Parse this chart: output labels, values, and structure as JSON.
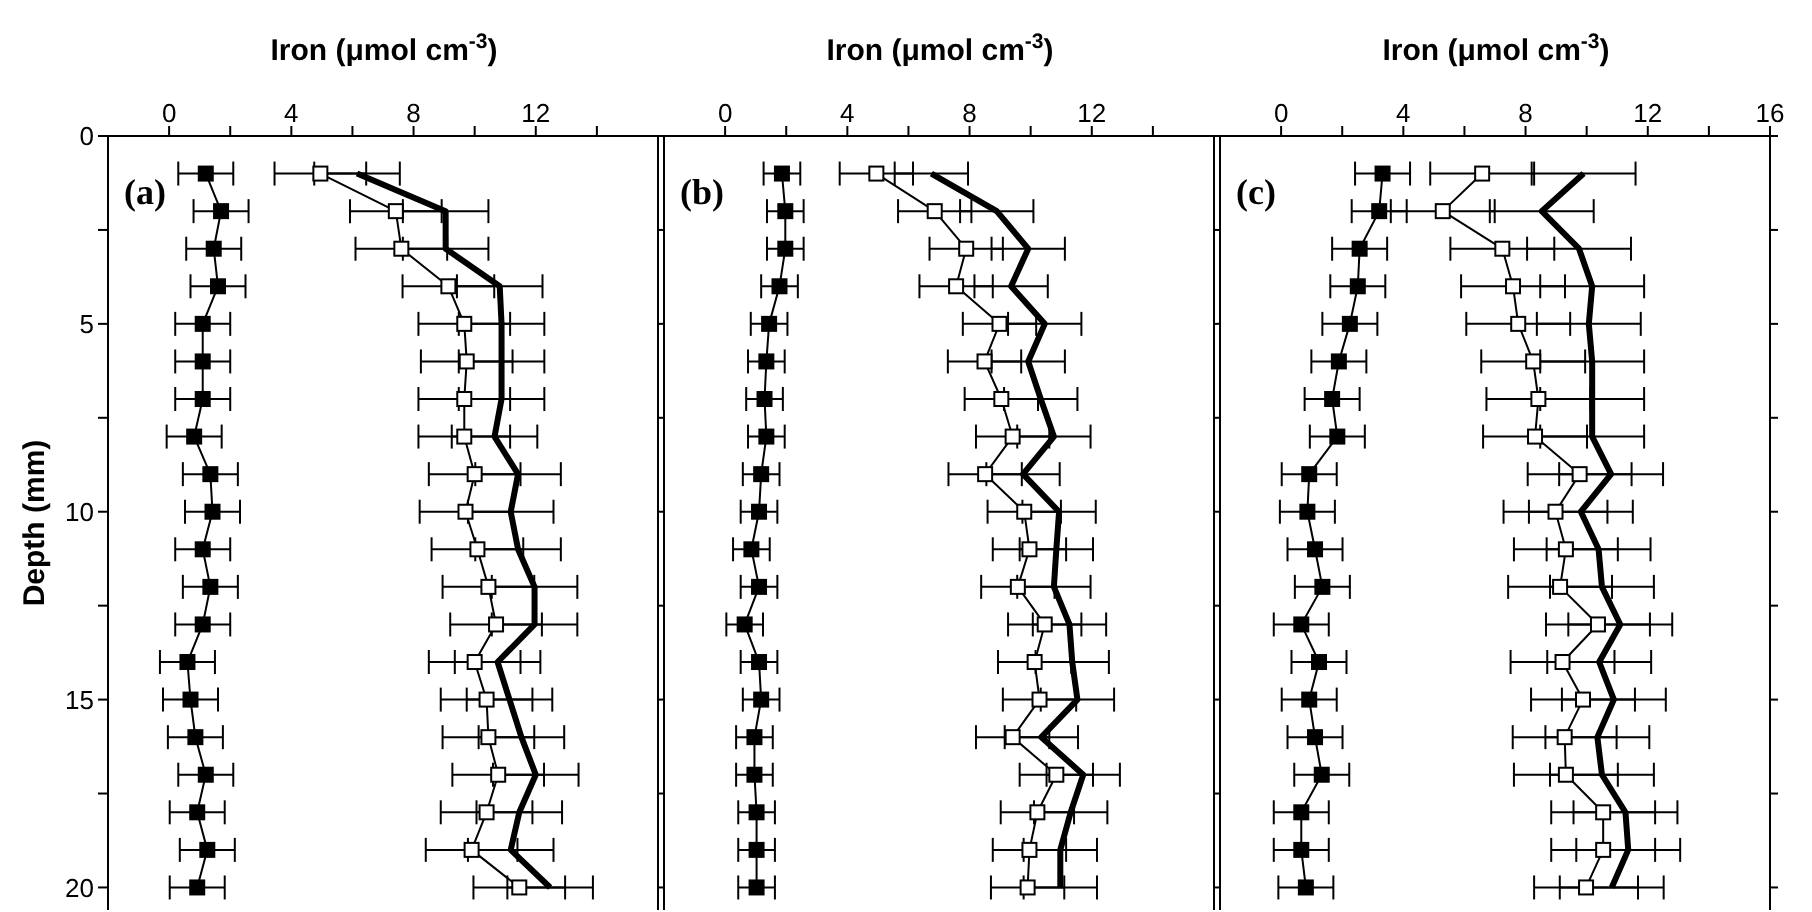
{
  "chart_data": [
    {
      "type": "line",
      "orientation": "horizontal",
      "xlabel": "Iron (μmol cm$^{-3}$)",
      "ylabel": "Depth (mm)",
      "annotations": [
        "(a)"
      ],
      "xlim": [
        -2,
        16
      ],
      "xticks": [
        0,
        {
          "value": 2,
          "label": null
        },
        4,
        {
          "value": 6,
          "label": null
        },
        8,
        {
          "value": 10,
          "label": null
        },
        12,
        {
          "value": 14,
          "label": null
        }
      ],
      "ylim": [
        20.6,
        0
      ],
      "yticks": [
        0,
        {
          "value": 2.5,
          "label": null
        },
        5,
        {
          "value": 7.5,
          "label": null
        },
        10,
        {
          "value": 12.5,
          "label": null
        },
        15,
        {
          "value": 17.5,
          "label": null
        },
        20
      ],
      "x": [
        1,
        2,
        3,
        4,
        5,
        6,
        7,
        8,
        9,
        10,
        11,
        12,
        13,
        14,
        15,
        16,
        17,
        18,
        19,
        20
      ],
      "marker": "square",
      "grid": false,
      "legend": false,
      "series": [
        {
          "color": "#000000",
          "values": [
            1.2,
            1.7,
            1.46,
            1.6,
            1.1,
            1.1,
            1.1,
            0.82,
            1.35,
            1.42,
            1.1,
            1.35,
            1.1,
            0.6,
            0.7,
            0.86,
            1.2,
            0.92,
            1.25,
            0.92
          ],
          "errors": [
            0.9,
            0.9,
            0.9,
            0.9,
            0.9,
            0.9,
            0.9,
            0.9,
            0.9,
            0.9,
            0.9,
            0.9,
            0.9,
            0.9,
            0.9,
            0.9,
            0.9,
            0.9,
            0.9,
            0.9
          ]
        },
        {
          "color": "#000000",
          "values": [
            4.95,
            7.42,
            7.6,
            9.14,
            9.66,
            9.74,
            9.66,
            9.66,
            10.0,
            9.7,
            10.09,
            10.45,
            10.7,
            10.0,
            10.39,
            10.45,
            10.77,
            10.39,
            9.9,
            11.46
          ],
          "errors": [
            1.5,
            1.5,
            1.5,
            1.5,
            1.5,
            1.5,
            1.5,
            1.5,
            1.5,
            1.5,
            1.5,
            1.5,
            1.5,
            1.5,
            1.5,
            1.5,
            1.5,
            1.5,
            1.5,
            1.5
          ]
        },
        {
          "color": "#000000",
          "marker": "none",
          "values": [
            6.15,
            9.05,
            9.05,
            10.82,
            10.88,
            10.88,
            10.88,
            10.65,
            11.42,
            11.18,
            11.42,
            11.96,
            11.96,
            10.75,
            11.14,
            11.53,
            12.0,
            11.46,
            11.18,
            12.47
          ],
          "errors": [
            1.4,
            1.4,
            1.4,
            1.4,
            1.4,
            1.4,
            1.4,
            1.4,
            1.4,
            1.4,
            1.4,
            1.4,
            1.4,
            1.4,
            1.4,
            1.4,
            1.4,
            1.4,
            1.4,
            1.4
          ]
        }
      ]
    },
    {
      "type": "line",
      "orientation": "horizontal",
      "xlabel": "Iron (μmol cm$^{-3}$)",
      "annotations": [
        "(b)"
      ],
      "tick_labels": "x",
      "xlim": [
        -2,
        16
      ],
      "xticks": [
        0,
        {
          "value": 2,
          "label": null
        },
        4,
        {
          "value": 6,
          "label": null
        },
        8,
        {
          "value": 10,
          "label": null
        },
        12,
        {
          "value": 14,
          "label": null
        }
      ],
      "ylim": [
        20.6,
        0
      ],
      "yticks": [
        0,
        {
          "value": 2.5,
          "label": null
        },
        5,
        {
          "value": 7.5,
          "label": null
        },
        10,
        {
          "value": 12.5,
          "label": null
        },
        15,
        {
          "value": 17.5,
          "label": null
        },
        20
      ],
      "x": [
        1,
        2,
        3,
        4,
        5,
        6,
        7,
        8,
        9,
        10,
        11,
        12,
        13,
        14,
        15,
        16,
        17,
        18,
        19,
        20
      ],
      "marker": "square",
      "grid": false,
      "legend": false,
      "series": [
        {
          "color": "#000000",
          "values": [
            1.86,
            1.97,
            1.97,
            1.78,
            1.44,
            1.35,
            1.29,
            1.35,
            1.18,
            1.11,
            0.86,
            1.11,
            0.64,
            1.11,
            1.18,
            0.96,
            0.96,
            1.03,
            1.03,
            1.03
          ],
          "errors": [
            0.6,
            0.6,
            0.6,
            0.6,
            0.6,
            0.6,
            0.6,
            0.6,
            0.6,
            0.6,
            0.6,
            0.6,
            0.6,
            0.6,
            0.6,
            0.6,
            0.6,
            0.6,
            0.6,
            0.6
          ]
        },
        {
          "color": "#000000",
          "values": [
            4.95,
            6.86,
            7.89,
            7.56,
            8.98,
            8.49,
            9.04,
            9.41,
            8.51,
            9.79,
            9.96,
            9.58,
            10.46,
            10.13,
            10.29,
            9.41,
            10.84,
            10.22,
            9.96,
            9.9
          ],
          "errors": [
            1.2,
            1.2,
            1.2,
            1.2,
            1.2,
            1.2,
            1.2,
            1.2,
            1.2,
            1.2,
            1.2,
            1.2,
            1.2,
            1.2,
            1.2,
            1.2,
            1.2,
            1.2,
            1.2,
            1.2
          ]
        },
        {
          "color": "#000000",
          "marker": "none",
          "values": [
            6.75,
            8.89,
            9.92,
            9.36,
            10.46,
            9.92,
            10.33,
            10.76,
            9.75,
            10.93,
            10.84,
            10.76,
            11.27,
            11.36,
            11.53,
            10.35,
            11.72,
            11.31,
            10.97,
            10.97
          ],
          "errors": [
            1.2,
            1.2,
            1.2,
            1.2,
            1.2,
            1.2,
            1.2,
            1.2,
            1.2,
            1.2,
            1.2,
            1.2,
            1.2,
            1.2,
            1.2,
            1.2,
            1.2,
            1.2,
            1.2,
            1.2
          ]
        }
      ]
    },
    {
      "type": "line",
      "orientation": "horizontal",
      "xlabel": "Iron (μmol cm$^{-3}$)",
      "annotations": [
        "(c)"
      ],
      "tick_labels": "x",
      "xlim": [
        -2,
        16
      ],
      "xticks": [
        0,
        {
          "value": 2,
          "label": null
        },
        4,
        {
          "value": 6,
          "label": null
        },
        8,
        {
          "value": 10,
          "label": null
        },
        12,
        {
          "value": 14,
          "label": null
        },
        16
      ],
      "ylim": [
        20.6,
        0
      ],
      "yticks": [
        0,
        {
          "value": 2.5,
          "label": null
        },
        5,
        {
          "value": 7.5,
          "label": null
        },
        10,
        {
          "value": 12.5,
          "label": null
        },
        15,
        {
          "value": 17.5,
          "label": null
        },
        20
      ],
      "x": [
        1,
        2,
        3,
        4,
        5,
        6,
        7,
        8,
        9,
        10,
        11,
        12,
        13,
        14,
        15,
        16,
        17,
        18,
        19,
        20
      ],
      "marker": "square",
      "grid": false,
      "legend": false,
      "series": [
        {
          "color": "#000000",
          "values": [
            3.32,
            3.21,
            2.57,
            2.51,
            2.25,
            1.89,
            1.67,
            1.84,
            0.92,
            0.86,
            1.11,
            1.35,
            0.66,
            1.24,
            0.92,
            1.11,
            1.33,
            0.66,
            0.66,
            0.81
          ],
          "errors": [
            0.9,
            0.9,
            0.9,
            0.9,
            0.9,
            0.9,
            0.9,
            0.9,
            0.9,
            0.9,
            0.9,
            0.9,
            0.9,
            0.9,
            0.9,
            0.9,
            0.9,
            0.9,
            0.9,
            0.9
          ]
        },
        {
          "color": "#000000",
          "values": [
            6.58,
            5.29,
            7.24,
            7.59,
            7.76,
            8.25,
            8.42,
            8.31,
            9.77,
            8.98,
            9.32,
            9.13,
            10.37,
            9.21,
            9.88,
            9.28,
            9.32,
            10.54,
            10.54,
            9.98
          ],
          "errors": [
            1.7,
            1.7,
            1.7,
            1.7,
            1.7,
            1.7,
            1.7,
            1.7,
            1.7,
            1.7,
            1.7,
            1.7,
            1.7,
            1.7,
            1.7,
            1.7,
            1.7,
            1.7,
            1.7,
            1.7
          ]
        },
        {
          "color": "#000000",
          "marker": "none",
          "values": [
            9.9,
            8.53,
            9.75,
            10.18,
            10.07,
            10.18,
            10.18,
            10.18,
            10.8,
            9.81,
            10.39,
            10.5,
            11.1,
            10.41,
            10.89,
            10.35,
            10.5,
            11.27,
            11.36,
            10.82
          ],
          "errors": [
            1.7,
            1.7,
            1.7,
            1.7,
            1.7,
            1.7,
            1.7,
            1.7,
            1.7,
            1.7,
            1.7,
            1.7,
            1.7,
            1.7,
            1.7,
            1.7,
            1.7,
            1.7,
            1.7,
            1.7
          ]
        }
      ]
    }
  ]
}
